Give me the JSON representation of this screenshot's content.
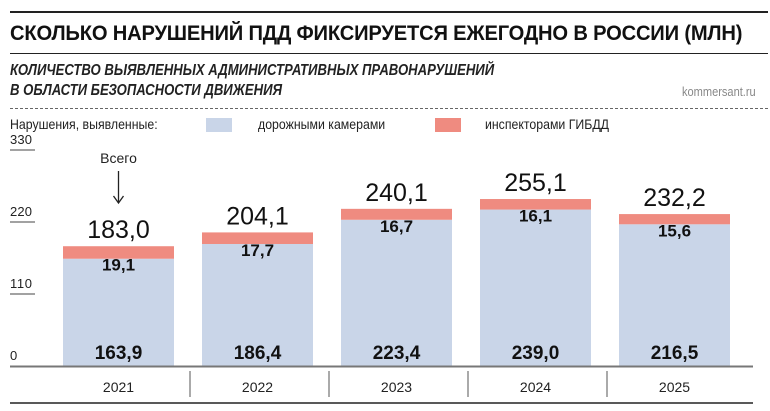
{
  "title": "СКОЛЬКО НАРУШЕНИЙ ПДД ФИКСИРУЕТСЯ ЕЖЕГОДНО В РОССИИ (МЛН)",
  "subtitle_line1": "КОЛИЧЕСТВО ВЫЯВЛЕННЫХ АДМИНИСТРАТИВНЫХ ПРАВОНАРУШЕНИЙ",
  "subtitle_line2": "В ОБЛАСТИ БЕЗОПАСНОСТИ ДВИЖЕНИЯ",
  "source": "kommersant.ru",
  "legend": {
    "prefix": "Нарушения, выявленные:",
    "items": [
      {
        "label": "дорожными камерами",
        "color": "#c9d5e8"
      },
      {
        "label": "инспекторами ГИБДД",
        "color": "#ef8b80"
      }
    ]
  },
  "chart_data": {
    "type": "bar",
    "stacked": true,
    "categories": [
      "2021",
      "2022",
      "2023",
      "2024",
      "2025"
    ],
    "series": [
      {
        "name": "дорожными камерами",
        "values": [
          163.9,
          186.4,
          223.4,
          239.0,
          216.5
        ],
        "labels": [
          "163,9",
          "186,4",
          "223,4",
          "239,0",
          "216,5"
        ],
        "color": "#c9d5e8"
      },
      {
        "name": "инспекторами ГИБДД",
        "values": [
          19.1,
          17.7,
          16.7,
          16.1,
          15.6
        ],
        "labels": [
          "19,1",
          "17,7",
          "16,7",
          "16,1",
          "15,6"
        ],
        "color": "#ef8b80"
      }
    ],
    "totals": [
      "183,0",
      "204,1",
      "240,1",
      "255,1",
      "232,2"
    ],
    "total_annotation": "Всего",
    "yticks": [
      "0",
      "110",
      "220",
      "330"
    ],
    "ytick_values": [
      0,
      110,
      220,
      330
    ],
    "ylim": [
      0,
      330
    ],
    "grid": false
  }
}
